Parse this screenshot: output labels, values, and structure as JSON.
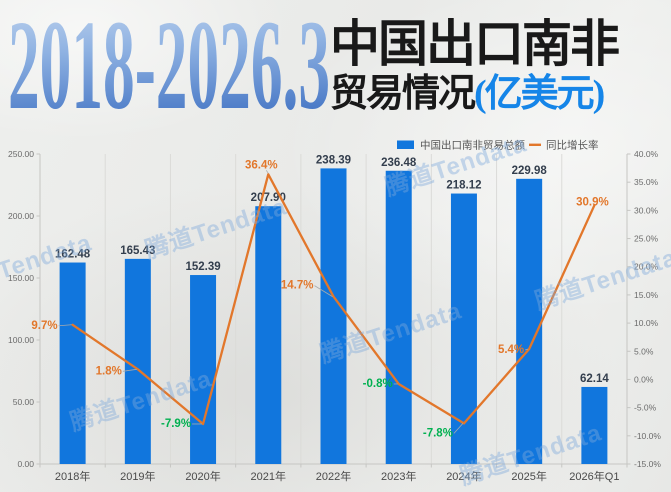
{
  "title": {
    "years": "2018-2026.3",
    "main": "中国出口南非",
    "sub_black": "贸易情况",
    "sub_blue": "(亿美元)"
  },
  "watermark": {
    "text": "腾道Tendata"
  },
  "legend": [
    {
      "label": "中国出口南非贸易总额",
      "marker": "bar-square",
      "color": "#1176dd"
    },
    {
      "label": "同比增长率",
      "marker": "line-dash",
      "color": "#e2772b"
    }
  ],
  "colors": {
    "bar": "#1176dd",
    "line": "#e2772b",
    "positive_growth_label": "#e2772b",
    "negative_growth_label": "#00b050",
    "value_label": "#333e4d",
    "axis_text": "#6b6b6b",
    "x_label_text": "#4a4a4a",
    "grid_line": "#dbdbd8",
    "axis_line": "#c6c6c3",
    "legend_text": "#555555",
    "subtitle_blue": "#1585e8",
    "title_gradient_top": "#c6d8f0",
    "title_gradient_mid": "#8fb2e2",
    "title_gradient_bottom": "#3e70c2",
    "background": "#ecedeb",
    "watermark": "rgba(126,169,219,0.42)"
  },
  "chart_data": {
    "type": "combo bar+line",
    "title": "2018-2026.3 中国出口南非贸易情况(亿美元)",
    "categories": [
      "2018年",
      "2019年",
      "2020年",
      "2021年",
      "2022年",
      "2023年",
      "2024年",
      "2025年",
      "2026年Q1"
    ],
    "series": [
      {
        "name": "中国出口南非贸易总额",
        "type": "bar",
        "axis": "left",
        "color": "#1176dd",
        "values": [
          162.48,
          165.43,
          152.39,
          207.9,
          238.39,
          236.48,
          218.12,
          229.98,
          62.14
        ]
      },
      {
        "name": "同比增长率",
        "type": "line",
        "axis": "right",
        "color": "#e2772b",
        "values": [
          9.7,
          1.8,
          -7.9,
          36.4,
          14.7,
          -0.8,
          -7.8,
          5.4,
          30.9
        ],
        "unit": "%"
      }
    ],
    "left_axis": {
      "min": 0,
      "max": 250,
      "step": 50,
      "ticks": [
        "250.00",
        "200.00",
        "150.00",
        "100.00",
        "50.00",
        "0.00"
      ]
    },
    "right_axis": {
      "min": -15,
      "max": 40,
      "step": 5,
      "ticks": [
        "40.0%",
        "35.0%",
        "30.0%",
        "25.0%",
        "20.0%",
        "15.0%",
        "10.0%",
        "5.0%",
        "0.0%",
        "-5.0%",
        "-10.0%",
        "-15.0%"
      ]
    },
    "legend_position": "top",
    "grid": "vertical category gridlines, no horizontal gridlines"
  }
}
